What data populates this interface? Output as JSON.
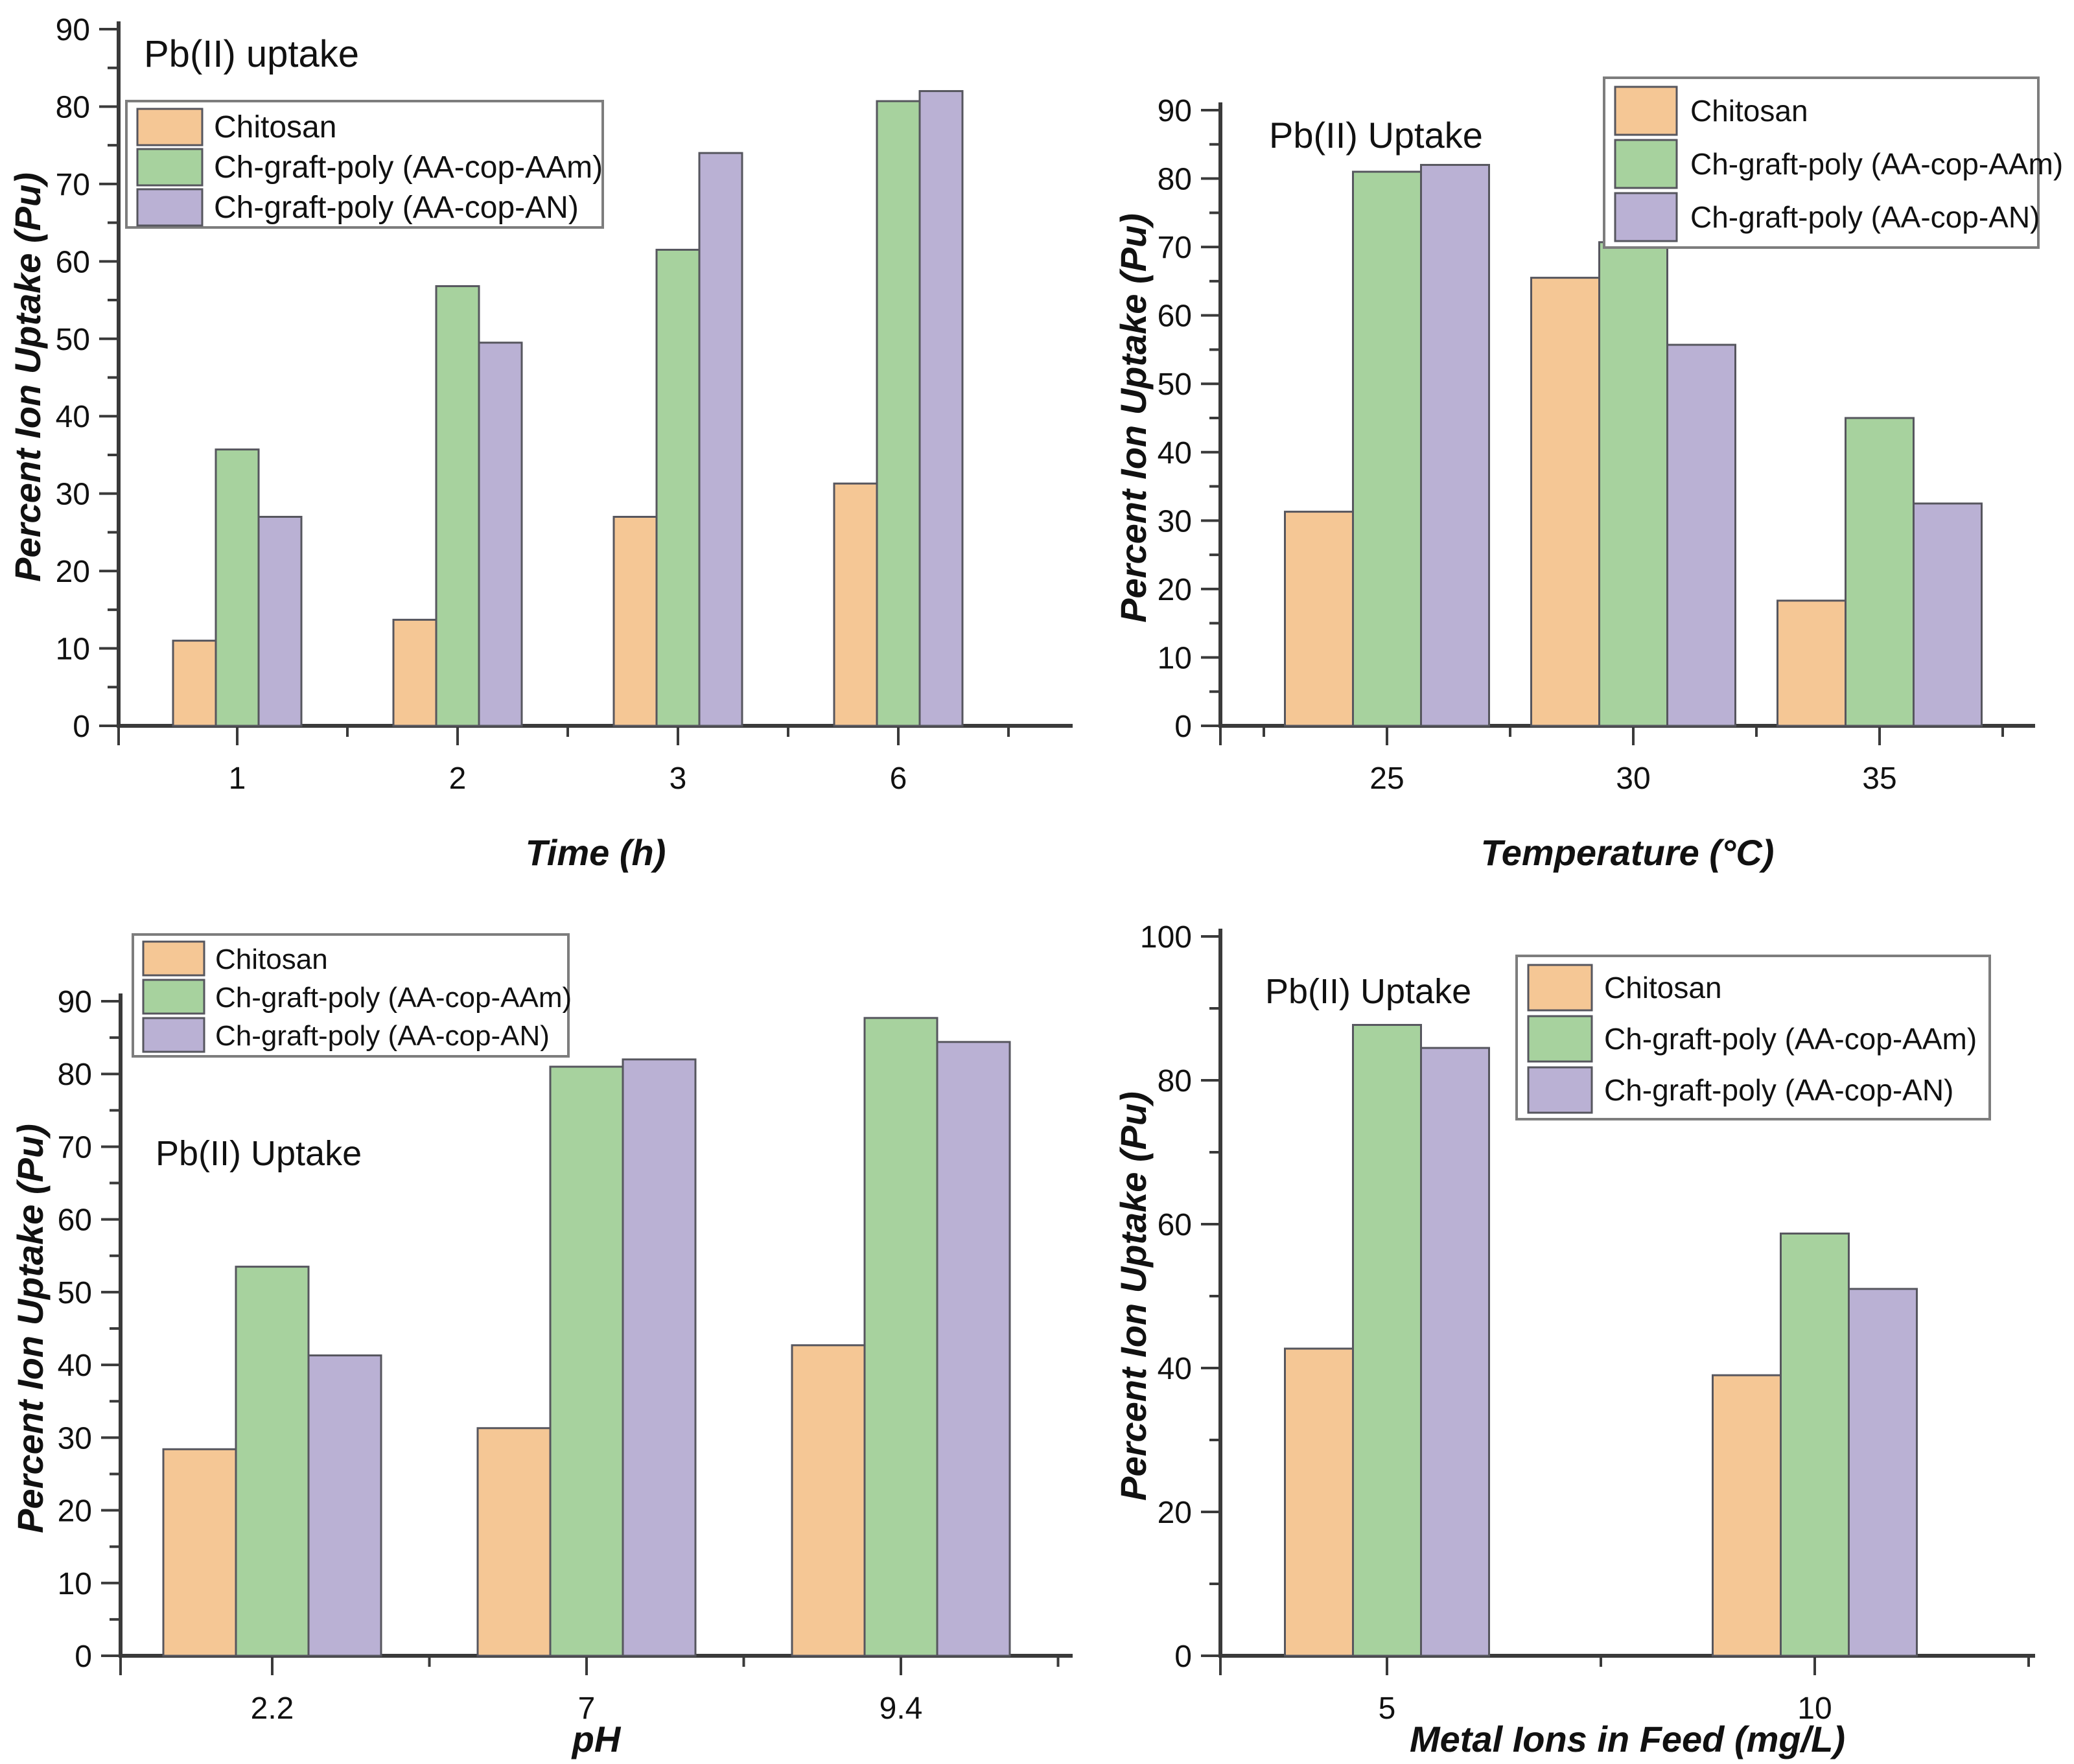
{
  "figure": {
    "description": "Four grouped bar charts of Pb(II) ion uptake by chitosan-based adsorbents"
  },
  "colors": {
    "chitosan_fill": "#F5C795",
    "aam_fill": "#A7D29E",
    "an_fill": "#BAB1D4",
    "bar_edge": "#56565e",
    "axis": "#3a3a3a",
    "legend_border": "#7d7d7d",
    "text": "#111111"
  },
  "series_labels": [
    "Chitosan",
    "Ch-graft-poly (AA-cop-AAm)",
    "Ch-graft-poly (AA-cop-AN)"
  ],
  "chart_data": [
    {
      "id": "time",
      "type": "bar",
      "title": "Pb(II) uptake",
      "xlabel": "Time (h)",
      "ylabel": "Percent Ion Uptake (Pu)",
      "categories": [
        "1",
        "2",
        "3",
        "6"
      ],
      "ylim": [
        0,
        90
      ],
      "ytick_major": 10,
      "ytick_minor": 5,
      "grid": false,
      "legend_position": "upper-left",
      "series": [
        {
          "name": "Chitosan",
          "values": [
            11.0,
            13.7,
            27.0,
            31.3
          ]
        },
        {
          "name": "Ch-graft-poly (AA-cop-AAm)",
          "values": [
            35.7,
            56.8,
            61.5,
            80.7
          ]
        },
        {
          "name": "Ch-graft-poly (AA-cop-AN)",
          "values": [
            27.0,
            49.5,
            74.0,
            82.0
          ]
        }
      ]
    },
    {
      "id": "temperature",
      "type": "bar",
      "title": "Pb(II) Uptake",
      "xlabel": "Temperature (°C)",
      "ylabel": "Percent Ion Uptake (Pu)",
      "categories": [
        "25",
        "30",
        "35"
      ],
      "ylim": [
        0,
        90
      ],
      "ytick_major": 10,
      "ytick_minor": 5,
      "grid": false,
      "legend_position": "upper-right",
      "series": [
        {
          "name": "Chitosan",
          "values": [
            31.3,
            65.5,
            18.3
          ]
        },
        {
          "name": "Ch-graft-poly (AA-cop-AAm)",
          "values": [
            81.0,
            70.7,
            45.0
          ]
        },
        {
          "name": "Ch-graft-poly (AA-cop-AN)",
          "values": [
            82.0,
            55.7,
            32.5
          ]
        }
      ]
    },
    {
      "id": "ph",
      "type": "bar",
      "title": "Pb(II) Uptake",
      "xlabel": "pH",
      "ylabel": "Percent Ion Uptake (Pu)",
      "categories": [
        "2.2",
        "7",
        "9.4"
      ],
      "ylim": [
        0,
        90
      ],
      "ytick_major": 10,
      "ytick_minor": 5,
      "grid": false,
      "legend_position": "upper-left",
      "series": [
        {
          "name": "Chitosan",
          "values": [
            28.4,
            31.3,
            42.7
          ]
        },
        {
          "name": "Ch-graft-poly (AA-cop-AAm)",
          "values": [
            53.5,
            81.0,
            87.7
          ]
        },
        {
          "name": "Ch-graft-poly (AA-cop-AN)",
          "values": [
            41.3,
            82.0,
            84.4
          ]
        }
      ]
    },
    {
      "id": "feed",
      "type": "bar",
      "title": "Pb(II) Uptake",
      "xlabel": "Metal Ions in Feed (mg/L)",
      "ylabel": "Percent Ion Uptake (Pu)",
      "categories": [
        "5",
        "10"
      ],
      "ylim": [
        0,
        100
      ],
      "ytick_major": 20,
      "ytick_minor": 10,
      "grid": false,
      "legend_position": "upper-right",
      "series": [
        {
          "name": "Chitosan",
          "values": [
            42.7,
            39.0
          ]
        },
        {
          "name": "Ch-graft-poly (AA-cop-AAm)",
          "values": [
            87.7,
            58.7
          ]
        },
        {
          "name": "Ch-graft-poly (AA-cop-AN)",
          "values": [
            84.5,
            51.0
          ]
        }
      ]
    }
  ]
}
